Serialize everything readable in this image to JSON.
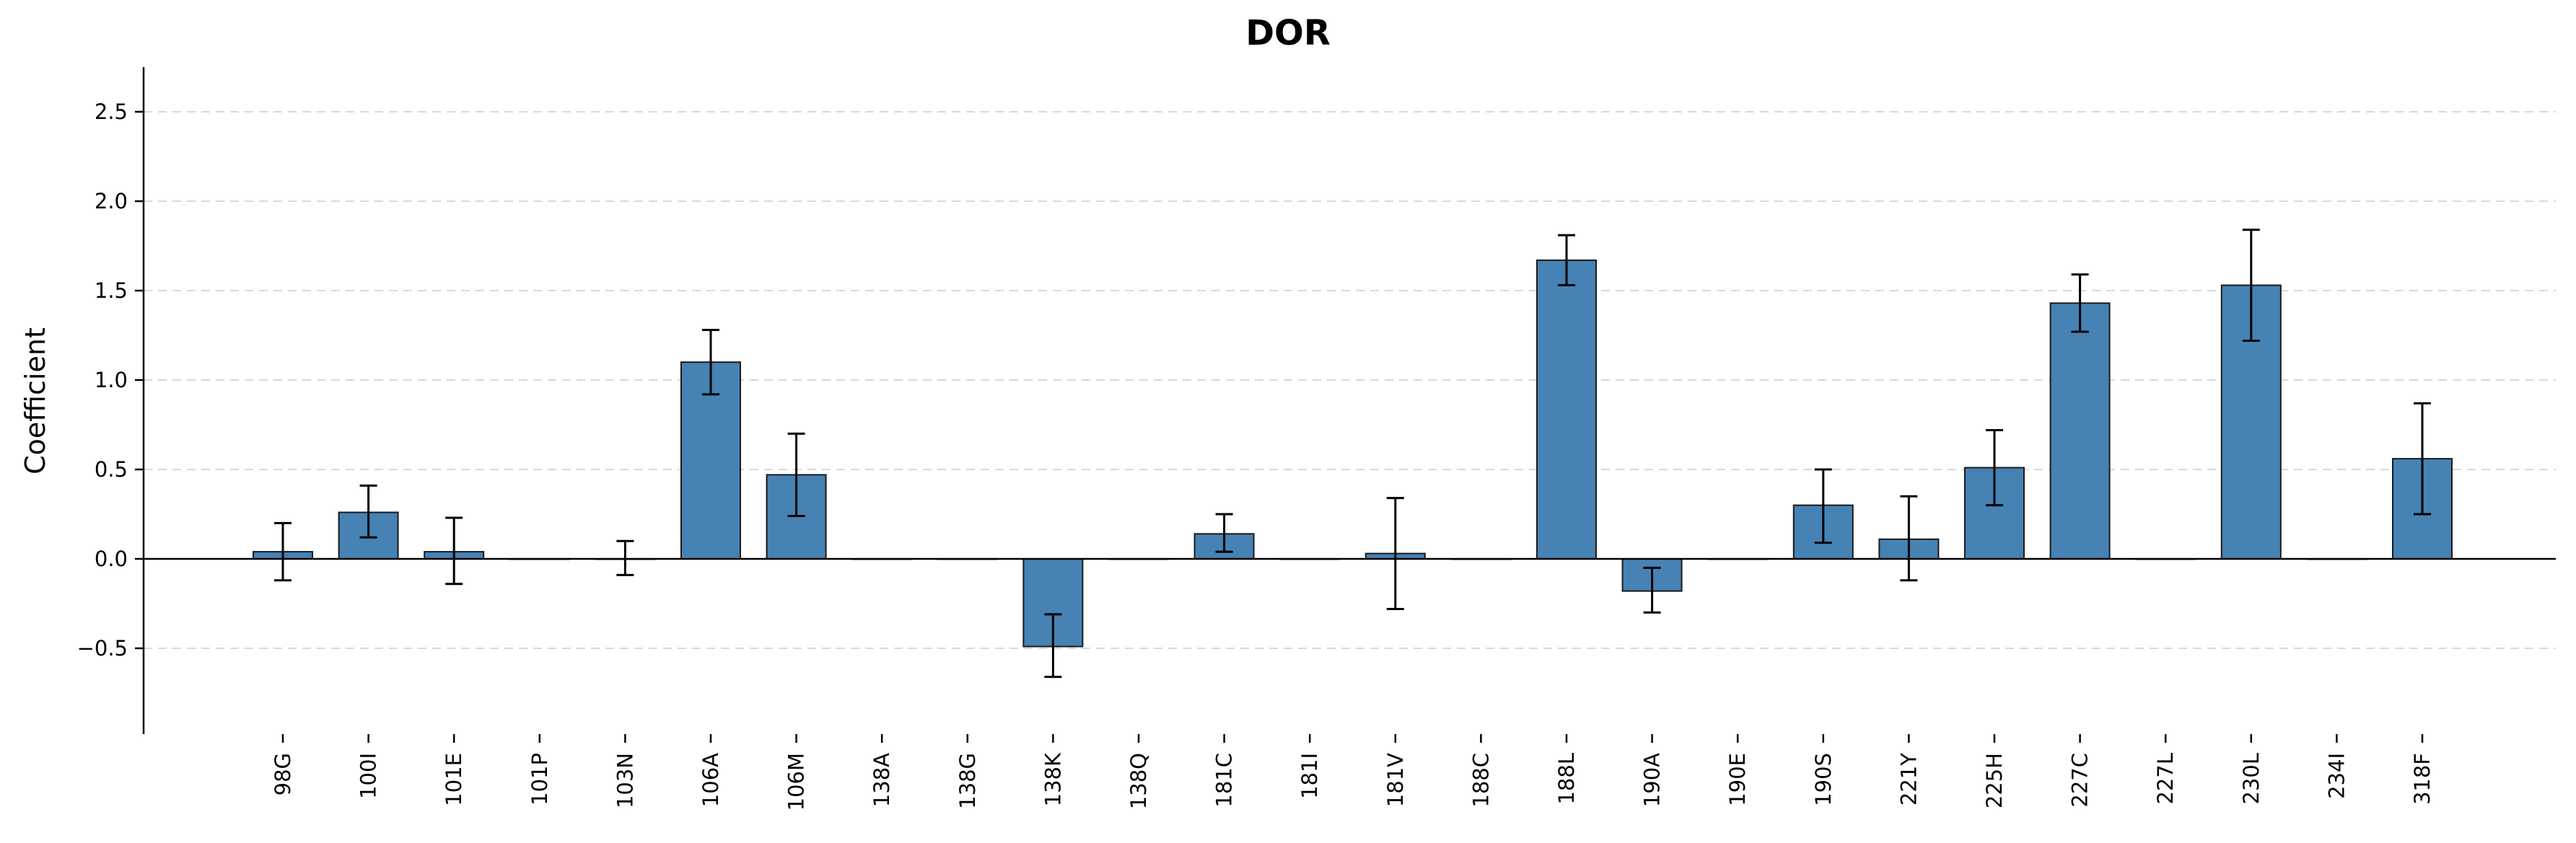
{
  "chart_data": {
    "type": "bar",
    "title": "DOR",
    "xlabel": "",
    "ylabel": "Coefficient",
    "ylim": [
      -0.98,
      2.75
    ],
    "yticks": [
      -0.5,
      0.0,
      0.5,
      1.0,
      1.5,
      2.0,
      2.5
    ],
    "ytick_labels": [
      "−0.5",
      "0.0",
      "0.5",
      "1.0",
      "1.5",
      "2.0",
      "2.5"
    ],
    "grid": "y-dashed",
    "colors": {
      "bar": "#4682b4",
      "bar_edge": "#1a1a1a",
      "error": "#000000",
      "grid": "#d9d9d9"
    },
    "categories": [
      "98G",
      "100I",
      "101E",
      "101P",
      "103N",
      "106A",
      "106M",
      "138A",
      "138G",
      "138K",
      "138Q",
      "181C",
      "181I",
      "181V",
      "188C",
      "188L",
      "190A",
      "190E",
      "190S",
      "221Y",
      "225H",
      "227C",
      "227L",
      "230L",
      "234I",
      "318F"
    ],
    "values": [
      0.04,
      0.26,
      0.04,
      0.0,
      0.0,
      1.1,
      0.47,
      0.0,
      0.0,
      -0.49,
      0.0,
      0.14,
      0.0,
      0.03,
      0.0,
      1.67,
      -0.18,
      0.0,
      0.3,
      0.11,
      0.51,
      1.43,
      0.0,
      1.53,
      0.0,
      0.56
    ],
    "error_low": [
      -0.12,
      0.12,
      -0.14,
      0.0,
      -0.09,
      0.92,
      0.24,
      0.0,
      0.0,
      -0.66,
      0.0,
      0.04,
      0.0,
      -0.28,
      0.0,
      1.53,
      -0.3,
      0.0,
      0.09,
      -0.12,
      0.3,
      1.27,
      0.0,
      1.22,
      0.0,
      0.25
    ],
    "error_high": [
      0.2,
      0.41,
      0.23,
      0.0,
      0.1,
      1.28,
      0.7,
      0.0,
      0.0,
      -0.31,
      0.0,
      0.25,
      0.0,
      0.34,
      0.0,
      1.81,
      -0.05,
      0.0,
      0.5,
      0.35,
      0.72,
      1.59,
      0.0,
      1.84,
      0.0,
      0.87
    ],
    "has_error": [
      true,
      true,
      true,
      false,
      true,
      true,
      true,
      false,
      false,
      true,
      false,
      true,
      false,
      true,
      false,
      true,
      true,
      false,
      true,
      true,
      true,
      true,
      false,
      true,
      false,
      true
    ]
  }
}
